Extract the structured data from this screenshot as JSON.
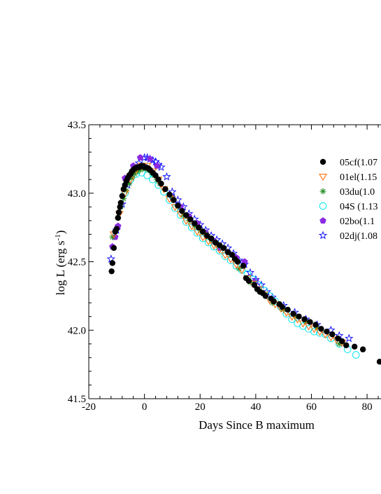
{
  "chart_data": {
    "type": "scatter",
    "xlabel": "Days Since B maximum",
    "ylabel": "log L (erg s",
    "ylabel_sup": "-1",
    "ylabel_close": ")",
    "xlim": [
      -20,
      85
    ],
    "ylim": [
      41.5,
      43.5
    ],
    "xticks": [
      -20,
      0,
      20,
      40,
      60,
      80
    ],
    "xtick_labels": [
      "-20",
      "0",
      "20",
      "40",
      "60",
      "80"
    ],
    "yticks": [
      41.5,
      42.0,
      42.5,
      43.0,
      43.5
    ],
    "ytick_labels": [
      "41.5",
      "42.0",
      "42.5",
      "43.0",
      "43.5"
    ],
    "legend_position": "top-right",
    "series": [
      {
        "name": "05cf(1.07",
        "marker": "filled-circle",
        "color": "#000000",
        "x": [
          -11.8,
          -11.5,
          -11.0,
          -10.5,
          -10.0,
          -9.5,
          -9.2,
          -8.8,
          -8.5,
          -8.0,
          -7.5,
          -7.0,
          -6.5,
          -6.0,
          -5.5,
          -5.0,
          -4.5,
          -4.0,
          -3.5,
          -3.0,
          -2.5,
          -2.0,
          -1.5,
          -1.0,
          -0.5,
          0.0,
          0.5,
          1.0,
          1.5,
          2.0,
          3.0,
          4.0,
          5.0,
          6.0,
          7.5,
          9.0,
          10.5,
          12.0,
          13.5,
          15.0,
          16.5,
          18.0,
          19.5,
          21.0,
          22.5,
          24.0,
          25.5,
          27.0,
          28.5,
          30.0,
          31.5,
          32.5,
          33.5,
          35.5,
          36.5,
          37.5,
          39.5,
          40.5,
          41.5,
          42.5,
          43.5,
          45.5,
          46.5,
          48.5,
          49.5,
          51.5,
          53.5,
          55.5,
          57.5,
          59.5,
          61.5,
          63.5,
          65.5,
          67.5,
          69.5,
          71.0,
          72.5,
          75.5,
          78.5,
          84.5
        ],
        "y": [
          42.43,
          42.49,
          42.6,
          42.72,
          42.74,
          42.82,
          42.86,
          42.9,
          42.93,
          42.98,
          43.03,
          43.06,
          43.09,
          43.11,
          43.13,
          43.14,
          43.16,
          43.17,
          43.18,
          43.185,
          43.19,
          43.19,
          43.195,
          43.2,
          43.2,
          43.19,
          43.19,
          43.185,
          43.18,
          43.17,
          43.15,
          43.13,
          43.1,
          43.07,
          43.03,
          42.99,
          42.95,
          42.91,
          42.87,
          42.84,
          42.81,
          42.78,
          42.75,
          42.72,
          42.69,
          42.67,
          42.64,
          42.62,
          42.6,
          42.57,
          42.55,
          42.52,
          42.5,
          42.47,
          42.38,
          42.36,
          42.33,
          42.3,
          42.28,
          42.27,
          42.25,
          42.23,
          42.21,
          42.19,
          42.17,
          42.15,
          42.12,
          42.1,
          42.08,
          42.06,
          42.04,
          42.01,
          41.99,
          41.97,
          41.94,
          41.92,
          41.89,
          41.88,
          41.86,
          41.77
        ]
      },
      {
        "name": "01el(1.15",
        "marker": "open-triangle-down",
        "color": "#ff6600",
        "x": [
          -11,
          -9,
          -7,
          -5,
          -3,
          -1,
          1,
          3,
          5,
          7,
          9,
          11,
          13,
          15,
          17,
          19,
          21,
          23,
          25,
          27,
          29,
          31,
          33,
          35,
          37,
          39,
          41,
          43,
          45,
          47,
          49,
          51,
          53,
          55,
          57,
          59,
          61,
          63,
          65,
          67,
          69,
          71
        ],
        "y": [
          42.7,
          42.85,
          43.0,
          43.1,
          43.17,
          43.2,
          43.2,
          43.16,
          43.1,
          43.03,
          42.96,
          42.9,
          42.85,
          42.8,
          42.76,
          42.72,
          42.68,
          42.65,
          42.62,
          42.59,
          42.55,
          42.52,
          42.48,
          42.44,
          42.38,
          42.34,
          42.3,
          42.26,
          42.22,
          42.19,
          42.16,
          42.13,
          42.1,
          42.08,
          42.05,
          42.03,
          42.01,
          41.99,
          41.97,
          41.95,
          41.93,
          41.91
        ]
      },
      {
        "name": "03du(1.0",
        "marker": "asterisk",
        "color": "#228b22",
        "x": [
          -11.5,
          -10.5,
          -9.5,
          -8.5,
          -7.5,
          -6.5,
          -5.5,
          -4.5,
          -3.5,
          -2.5,
          -1.5,
          -0.5,
          0.5,
          1.5,
          2.5,
          3.5,
          4.5,
          5.5,
          10,
          12,
          14,
          16,
          18,
          20,
          22,
          24,
          26,
          28,
          30,
          34,
          38,
          42,
          46,
          50,
          54,
          58,
          62,
          70
        ],
        "y": [
          42.68,
          42.72,
          42.82,
          42.9,
          42.96,
          43.02,
          43.07,
          43.11,
          43.14,
          43.16,
          43.17,
          43.18,
          43.18,
          43.17,
          43.15,
          43.13,
          43.1,
          43.07,
          42.97,
          42.9,
          42.84,
          42.8,
          42.76,
          42.73,
          42.7,
          42.66,
          42.63,
          42.6,
          42.57,
          42.45,
          42.35,
          42.28,
          42.2,
          42.15,
          42.1,
          42.06,
          42.02,
          41.9
        ]
      },
      {
        "name": "04S (1.13",
        "marker": "open-circle",
        "color": "#00e5ee",
        "x": [
          -7,
          -5,
          -3,
          -1,
          1,
          3,
          5,
          7,
          9,
          11,
          13,
          15,
          17,
          19,
          21,
          23,
          25,
          27,
          29,
          31,
          33,
          35,
          37,
          39,
          41,
          43,
          45,
          47,
          49,
          51,
          53,
          55,
          57,
          59,
          61,
          63,
          65,
          67,
          70,
          73,
          76
        ],
        "y": [
          43.0,
          43.1,
          43.14,
          43.15,
          43.13,
          43.1,
          43.06,
          43.01,
          42.95,
          42.89,
          42.84,
          42.79,
          42.75,
          42.71,
          42.67,
          42.64,
          42.61,
          42.58,
          42.54,
          42.51,
          42.47,
          42.44,
          42.41,
          42.37,
          42.33,
          42.29,
          42.25,
          42.21,
          42.17,
          42.12,
          42.08,
          42.05,
          42.03,
          42.01,
          41.99,
          41.98,
          41.97,
          41.94,
          41.9,
          41.86,
          41.82
        ]
      },
      {
        "name": "02bo(1.1",
        "marker": "filled-pentagon",
        "color": "#8a2be2",
        "x": [
          -11.5,
          -10.5,
          -9.5,
          -7,
          -4,
          -1.5,
          2,
          4.5,
          10,
          13,
          16,
          19,
          22,
          25,
          27,
          30,
          33,
          36,
          40
        ],
        "y": [
          42.61,
          42.68,
          42.76,
          43.11,
          43.2,
          43.26,
          43.25,
          43.2,
          42.97,
          42.9,
          42.83,
          42.78,
          42.71,
          42.65,
          42.6,
          42.57,
          42.53,
          42.5,
          42.36
        ]
      },
      {
        "name": "02dj(1.08",
        "marker": "open-star",
        "color": "#0000ff",
        "x": [
          -12,
          -10,
          -8,
          -6,
          -4,
          -2,
          0,
          1,
          2,
          3,
          4,
          5,
          6,
          8,
          10,
          12,
          14,
          16,
          18,
          20,
          22,
          24,
          26,
          28,
          30,
          32,
          34,
          36,
          38,
          40,
          42,
          44,
          46,
          50,
          54,
          58,
          62,
          67,
          70,
          73.5
        ],
        "y": [
          42.52,
          42.73,
          42.92,
          43.06,
          43.16,
          43.22,
          43.26,
          43.26,
          43.25,
          43.24,
          43.23,
          43.21,
          43.19,
          43.12,
          43.01,
          42.95,
          42.9,
          42.85,
          42.81,
          42.77,
          42.73,
          42.69,
          42.66,
          42.63,
          42.6,
          42.56,
          42.51,
          42.48,
          42.42,
          42.37,
          42.33,
          42.28,
          42.24,
          42.18,
          42.13,
          42.08,
          42.04,
          42.0,
          41.96,
          41.94
        ]
      }
    ]
  }
}
